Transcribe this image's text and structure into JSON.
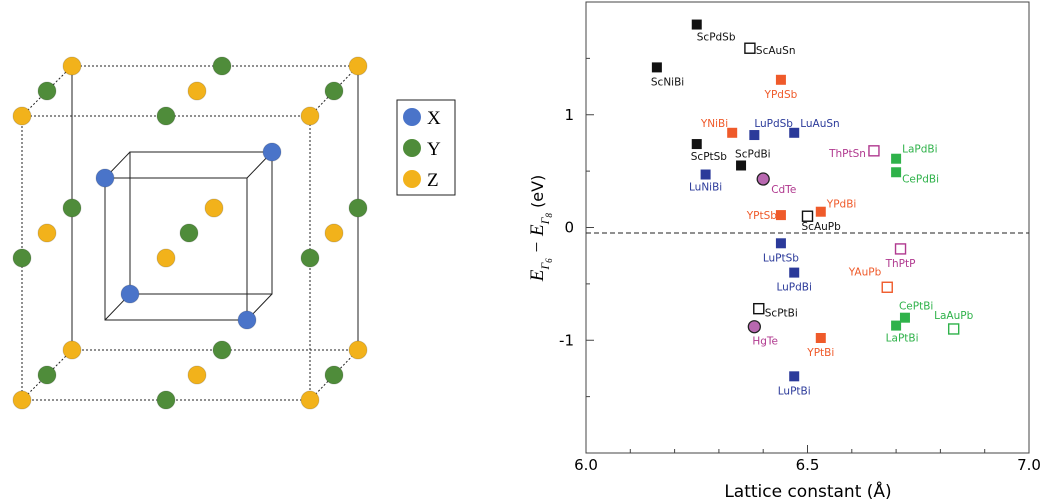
{
  "structure": {
    "legend": [
      {
        "label": "X",
        "color": "#4a74c9"
      },
      {
        "label": "Y",
        "color": "#4f8c3a"
      },
      {
        "label": "Z",
        "color": "#f2b21b"
      }
    ]
  },
  "colors": {
    "black": "#111111",
    "blue": "#2b3a9a",
    "orange": "#ef5a2a",
    "purple": "#b0398f",
    "green": "#2fb24a"
  },
  "chart_data": {
    "type": "scatter",
    "xlabel": "Lattice constant (Å)",
    "ylabel": "E_Γ6 − E_Γ8 (eV)",
    "xlim": [
      6.0,
      7.0
    ],
    "ylim": [
      -2.0,
      2.0
    ],
    "xticks": [
      6.0,
      6.5,
      7.0
    ],
    "xtick_labels": [
      "6.0",
      "6.5",
      "7.0"
    ],
    "yticks": [
      -1,
      0,
      1
    ],
    "ytick_labels": [
      "-1",
      "0",
      "1"
    ],
    "grid": false,
    "zero_line": "dashed",
    "points": [
      {
        "label": "ScPdSb",
        "x": 6.25,
        "y": 1.8,
        "color": "black",
        "filled": true,
        "shape": "square"
      },
      {
        "label": "ScAuSn",
        "x": 6.37,
        "y": 1.59,
        "color": "black",
        "filled": false,
        "shape": "square"
      },
      {
        "label": "ScNiBi",
        "x": 6.16,
        "y": 1.42,
        "color": "black",
        "filled": true,
        "shape": "square"
      },
      {
        "label": "YPdSb",
        "x": 6.44,
        "y": 1.31,
        "color": "orange",
        "filled": true,
        "shape": "square"
      },
      {
        "label": "YNiBi",
        "x": 6.33,
        "y": 0.84,
        "color": "orange",
        "filled": true,
        "shape": "square"
      },
      {
        "label": "LuPdSb",
        "x": 6.38,
        "y": 0.82,
        "color": "blue",
        "filled": true,
        "shape": "square"
      },
      {
        "label": "LuAuSn",
        "x": 6.47,
        "y": 0.84,
        "color": "blue",
        "filled": true,
        "shape": "square"
      },
      {
        "label": "ScPtSb",
        "x": 6.25,
        "y": 0.74,
        "color": "black",
        "filled": true,
        "shape": "square"
      },
      {
        "label": "ScPdBi",
        "x": 6.35,
        "y": 0.55,
        "color": "black",
        "filled": true,
        "shape": "square"
      },
      {
        "label": "ThPtSn",
        "x": 6.65,
        "y": 0.68,
        "color": "purple",
        "filled": false,
        "shape": "square"
      },
      {
        "label": "LaPdBi",
        "x": 6.7,
        "y": 0.61,
        "color": "green",
        "filled": true,
        "shape": "square"
      },
      {
        "label": "CePdBi",
        "x": 6.7,
        "y": 0.49,
        "color": "green",
        "filled": true,
        "shape": "square"
      },
      {
        "label": "LuNiBi",
        "x": 6.27,
        "y": 0.47,
        "color": "blue",
        "filled": true,
        "shape": "square"
      },
      {
        "label": "CdTe",
        "x": 6.4,
        "y": 0.43,
        "color": "purple",
        "filled": true,
        "shape": "circle"
      },
      {
        "label": "YPtSb",
        "x": 6.44,
        "y": 0.11,
        "color": "orange",
        "filled": true,
        "shape": "square"
      },
      {
        "label": "YPdBi",
        "x": 6.53,
        "y": 0.14,
        "color": "orange",
        "filled": true,
        "shape": "square"
      },
      {
        "label": "ScAuPb",
        "x": 6.5,
        "y": 0.1,
        "color": "black",
        "filled": false,
        "shape": "square"
      },
      {
        "label": "LuPtSb",
        "x": 6.44,
        "y": -0.14,
        "color": "blue",
        "filled": true,
        "shape": "square"
      },
      {
        "label": "ThPtP",
        "x": 6.71,
        "y": -0.19,
        "color": "purple",
        "filled": false,
        "shape": "square"
      },
      {
        "label": "LuPdBi",
        "x": 6.47,
        "y": -0.4,
        "color": "blue",
        "filled": true,
        "shape": "square"
      },
      {
        "label": "YAuPb",
        "x": 6.68,
        "y": -0.53,
        "color": "orange",
        "filled": false,
        "shape": "square"
      },
      {
        "label": "ScPtBi",
        "x": 6.39,
        "y": -0.72,
        "color": "black",
        "filled": false,
        "shape": "square"
      },
      {
        "label": "CePtBi",
        "x": 6.72,
        "y": -0.8,
        "color": "green",
        "filled": true,
        "shape": "square"
      },
      {
        "label": "LaPtBi",
        "x": 6.7,
        "y": -0.87,
        "color": "green",
        "filled": true,
        "shape": "square"
      },
      {
        "label": "LaAuPb",
        "x": 6.83,
        "y": -0.9,
        "color": "green",
        "filled": false,
        "shape": "square"
      },
      {
        "label": "HgTe",
        "x": 6.38,
        "y": -0.88,
        "color": "purple",
        "filled": true,
        "shape": "circle"
      },
      {
        "label": "YPtBi",
        "x": 6.53,
        "y": -0.98,
        "color": "orange",
        "filled": true,
        "shape": "square"
      },
      {
        "label": "LuPtBi",
        "x": 6.47,
        "y": -1.32,
        "color": "blue",
        "filled": true,
        "shape": "square"
      }
    ]
  }
}
